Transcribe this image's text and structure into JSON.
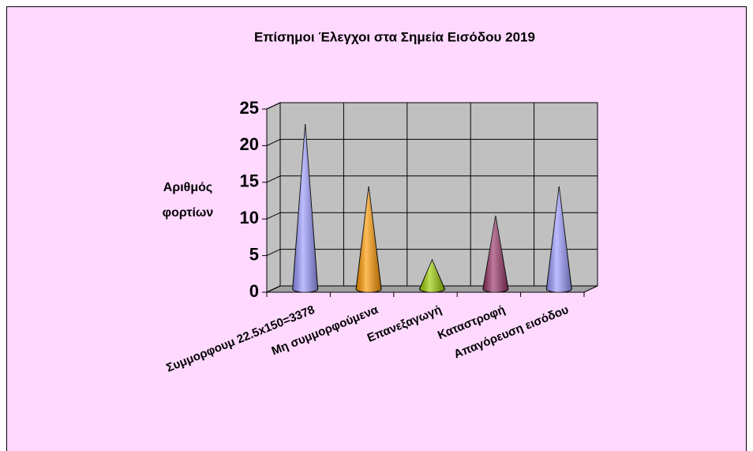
{
  "chart_data": {
    "type": "cone3d",
    "title": "Επίσημοι Έλεγχοι στα Σημεία Εισόδου 2019",
    "ylabel": [
      "Αριθμός",
      "φορτίων"
    ],
    "categories": [
      "Συμμορφουμ 22.5x150=3378",
      "Μη συμμορφούμενα",
      "Επανεξαγωγή",
      "Καταστροφή",
      "Απαγόρευση εισόδου"
    ],
    "series": [
      {
        "name": null,
        "values": [
          22.5,
          14,
          4,
          10,
          14
        ],
        "colors": [
          "#9999ff",
          "#ff9900",
          "#99cc00",
          "#993366",
          "#9999ff"
        ]
      }
    ],
    "ylim": [
      0,
      25
    ],
    "yticks": [
      0,
      5,
      10,
      15,
      20,
      25
    ],
    "grid": true
  }
}
